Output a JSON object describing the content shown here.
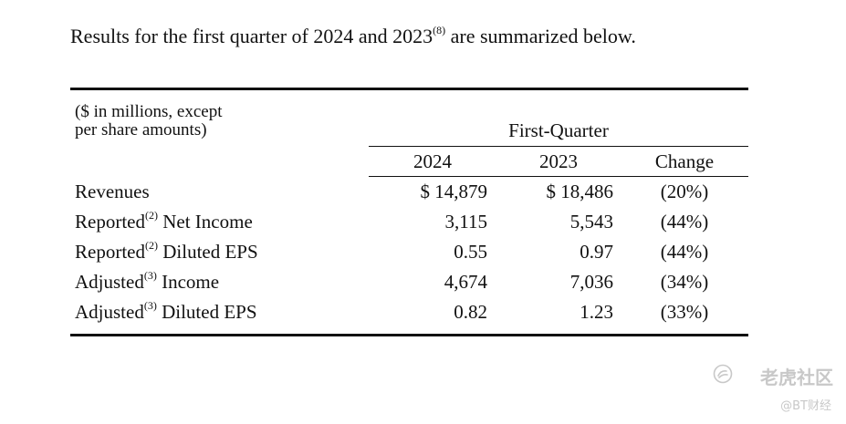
{
  "intro": {
    "text_before": "Results for the first quarter of 2024 and 2023",
    "footnote": "(8)",
    "text_after": " are summarized below."
  },
  "table": {
    "units_line1": "($ in millions, except",
    "units_line2": "per share amounts)",
    "group_header": "First-Quarter",
    "columns": [
      "2024",
      "2023",
      "Change"
    ],
    "rows": [
      {
        "label": "Revenues",
        "footnote": "",
        "label_suffix": "",
        "v2024": "$ 14,879",
        "v2023": "$ 18,486",
        "change": "(20%)"
      },
      {
        "label": "Reported",
        "footnote": "(2)",
        "label_suffix": " Net Income",
        "v2024": "3,115",
        "v2023": "5,543",
        "change": "(44%)"
      },
      {
        "label": "Reported",
        "footnote": "(2)",
        "label_suffix": " Diluted EPS",
        "v2024": "0.55",
        "v2023": "0.97",
        "change": "(44%)"
      },
      {
        "label": "Adjusted",
        "footnote": "(3)",
        "label_suffix": " Income",
        "v2024": "4,674",
        "v2023": "7,036",
        "change": "(34%)"
      },
      {
        "label": "Adjusted",
        "footnote": "(3)",
        "label_suffix": " Diluted EPS",
        "v2024": "0.82",
        "v2023": "1.23",
        "change": "(33%)"
      }
    ]
  },
  "watermark": {
    "main": "老虎社区",
    "sub": "@BT财经",
    "icon": "tiger-logo-icon"
  }
}
